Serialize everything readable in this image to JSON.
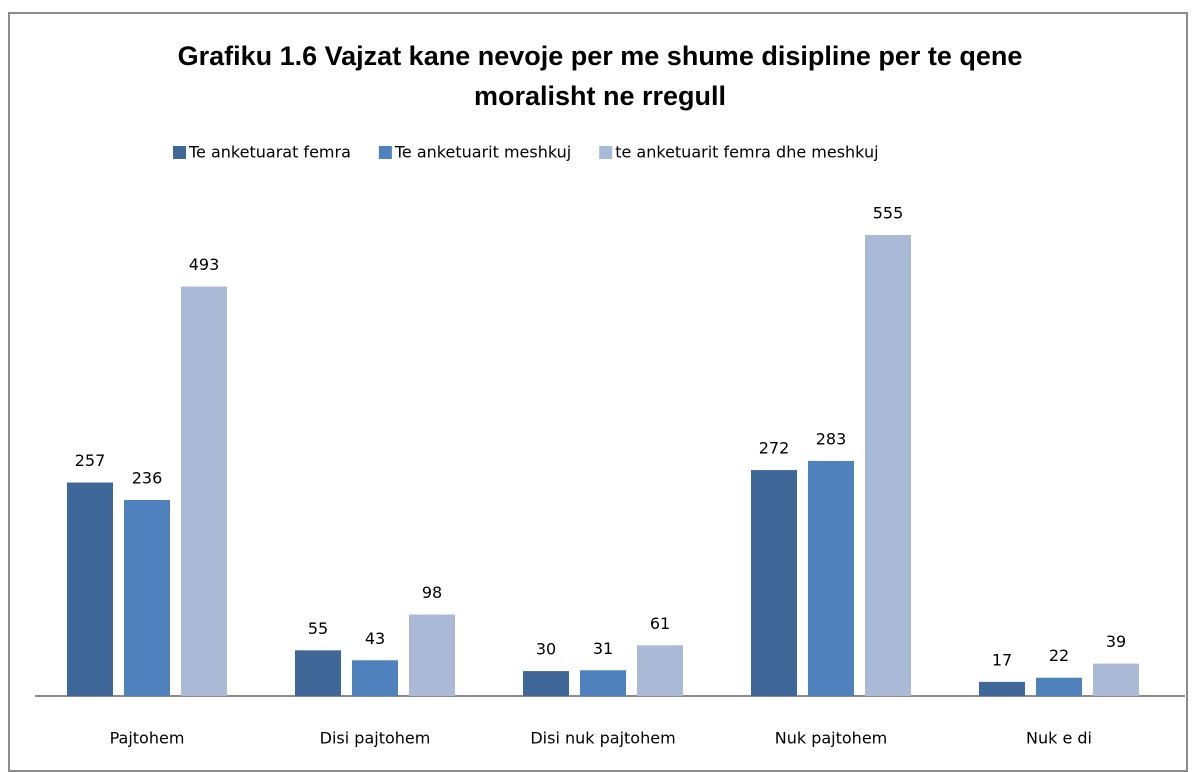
{
  "chart_data": {
    "type": "bar",
    "title": "Grafiku 1.6 Vajzat kane nevoje per me shume disipline per te qene moralisht ne rregull",
    "categories": [
      "Pajtohem",
      "Disi pajtohem",
      "Disi nuk pajtohem",
      "Nuk pajtohem",
      "Nuk e di"
    ],
    "series": [
      {
        "name": "Te anketuarat  femra",
        "color": "#3f6797",
        "values": [
          257,
          55,
          30,
          272,
          17
        ]
      },
      {
        "name": "Te anketuarit meshkuj",
        "color": "#4f81bd",
        "values": [
          236,
          43,
          31,
          283,
          22
        ]
      },
      {
        "name": "te anketuarit femra dhe meshkuj",
        "color": "#a9b9d6",
        "values": [
          493,
          98,
          61,
          555,
          39
        ]
      }
    ],
    "legend": "top"
  }
}
